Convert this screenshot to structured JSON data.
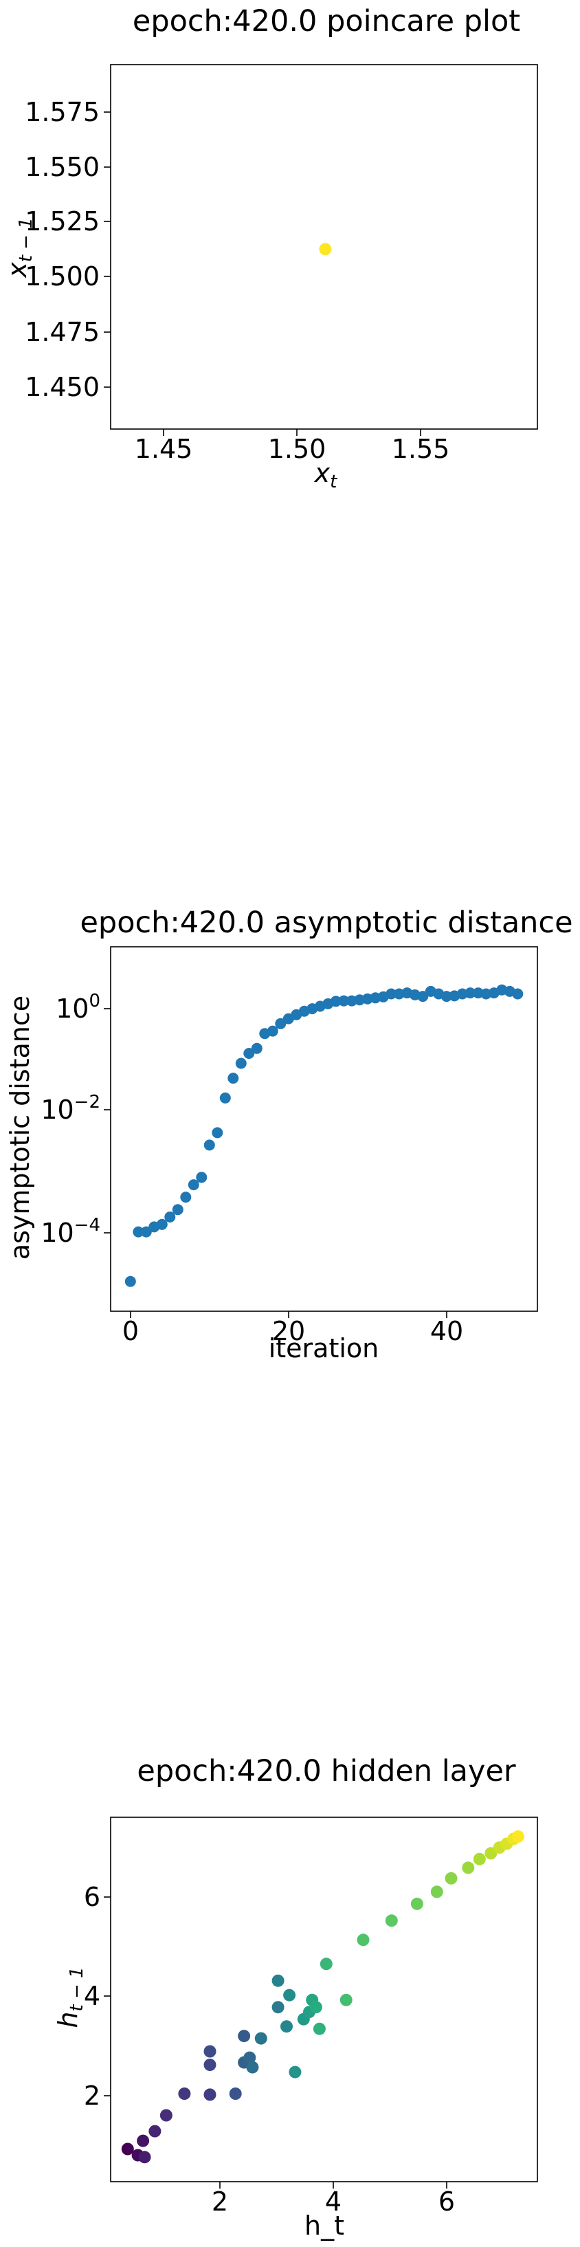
{
  "chart_data": [
    {
      "type": "scatter",
      "title": "epoch:420.0 poincare plot",
      "xlabel": "x_t",
      "ylabel": "x_{t-1}",
      "xlim": [
        1.43,
        1.595
      ],
      "ylim": [
        1.433,
        1.595
      ],
      "xticks": [
        "1.45",
        "1.50",
        "1.55"
      ],
      "yticks": [
        "1.450",
        "1.475",
        "1.500",
        "1.525",
        "1.550",
        "1.575"
      ],
      "points": [
        {
          "x": 1.513,
          "y": 1.513,
          "color": "#fde725"
        }
      ]
    },
    {
      "type": "scatter",
      "title": "epoch:420.0 asymptotic distance",
      "xlabel": "iteration",
      "ylabel": "asymptotic distance",
      "yscale": "log",
      "xlim": [
        -2.5,
        51.5
      ],
      "ylim_log10": [
        -5.6,
        1.75
      ],
      "xticks": [
        "0",
        "20",
        "40"
      ],
      "color": "#1f77b4",
      "x": [
        0,
        1,
        2,
        3,
        4,
        5,
        6,
        7,
        8,
        9,
        10,
        11,
        12,
        13,
        14,
        15,
        16,
        17,
        18,
        19,
        20,
        21,
        22,
        23,
        24,
        25,
        26,
        27,
        28,
        29,
        30,
        31,
        32,
        33,
        34,
        35,
        36,
        37,
        38,
        39,
        40,
        41,
        42,
        43,
        44,
        45,
        46,
        47,
        48,
        49
      ],
      "log10_y": [
        -5.0,
        -4.0,
        -4.0,
        -3.9,
        -3.85,
        -3.7,
        -3.55,
        -3.3,
        -3.05,
        -2.9,
        -2.25,
        -2.0,
        -1.3,
        -0.9,
        -0.6,
        -0.4,
        -0.3,
        0.0,
        0.05,
        0.2,
        0.3,
        0.38,
        0.45,
        0.5,
        0.55,
        0.6,
        0.65,
        0.66,
        0.66,
        0.68,
        0.7,
        0.72,
        0.74,
        0.8,
        0.8,
        0.82,
        0.78,
        0.75,
        0.85,
        0.8,
        0.75,
        0.76,
        0.8,
        0.82,
        0.82,
        0.8,
        0.82,
        0.88,
        0.85,
        0.8
      ]
    },
    {
      "type": "scatter",
      "title": "epoch:420.0 hidden layer",
      "xlabel": "h_t",
      "ylabel": "h_{t-1}",
      "xlim": [
        0.1,
        7.62
      ],
      "ylim": [
        0.07,
        7.65
      ],
      "xticks": [
        "2",
        "4",
        "6"
      ],
      "yticks": [
        "2",
        "4",
        "6"
      ],
      "colormap": [
        "#440154",
        "#472d7b",
        "#3b528b",
        "#2c728e",
        "#21918c",
        "#28ae80",
        "#5ec962",
        "#addc30",
        "#fde725"
      ],
      "points": [
        {
          "x": 0.4,
          "y": 0.75
        },
        {
          "x": 0.58,
          "y": 0.62
        },
        {
          "x": 0.67,
          "y": 0.92
        },
        {
          "x": 0.7,
          "y": 0.58
        },
        {
          "x": 0.88,
          "y": 1.12
        },
        {
          "x": 1.08,
          "y": 1.45
        },
        {
          "x": 1.4,
          "y": 1.9
        },
        {
          "x": 1.85,
          "y": 1.88
        },
        {
          "x": 1.85,
          "y": 2.5
        },
        {
          "x": 1.85,
          "y": 2.78
        },
        {
          "x": 2.3,
          "y": 1.9
        },
        {
          "x": 2.45,
          "y": 3.1
        },
        {
          "x": 2.45,
          "y": 2.55
        },
        {
          "x": 2.55,
          "y": 2.65
        },
        {
          "x": 2.6,
          "y": 2.45
        },
        {
          "x": 2.75,
          "y": 3.05
        },
        {
          "x": 3.05,
          "y": 3.7
        },
        {
          "x": 3.05,
          "y": 4.25
        },
        {
          "x": 3.2,
          "y": 3.3
        },
        {
          "x": 3.25,
          "y": 3.95
        },
        {
          "x": 3.35,
          "y": 2.35
        },
        {
          "x": 3.5,
          "y": 3.45
        },
        {
          "x": 3.6,
          "y": 3.6
        },
        {
          "x": 3.65,
          "y": 3.85
        },
        {
          "x": 3.72,
          "y": 3.7
        },
        {
          "x": 3.78,
          "y": 3.25
        },
        {
          "x": 3.9,
          "y": 4.6
        },
        {
          "x": 4.25,
          "y": 3.85
        },
        {
          "x": 4.55,
          "y": 5.1
        },
        {
          "x": 5.05,
          "y": 5.5
        },
        {
          "x": 5.5,
          "y": 5.85
        },
        {
          "x": 5.85,
          "y": 6.1
        },
        {
          "x": 6.1,
          "y": 6.38
        },
        {
          "x": 6.4,
          "y": 6.6
        },
        {
          "x": 6.6,
          "y": 6.78
        },
        {
          "x": 6.8,
          "y": 6.9
        },
        {
          "x": 6.95,
          "y": 7.02
        },
        {
          "x": 7.08,
          "y": 7.1
        },
        {
          "x": 7.2,
          "y": 7.2
        },
        {
          "x": 7.28,
          "y": 7.25
        }
      ]
    }
  ]
}
